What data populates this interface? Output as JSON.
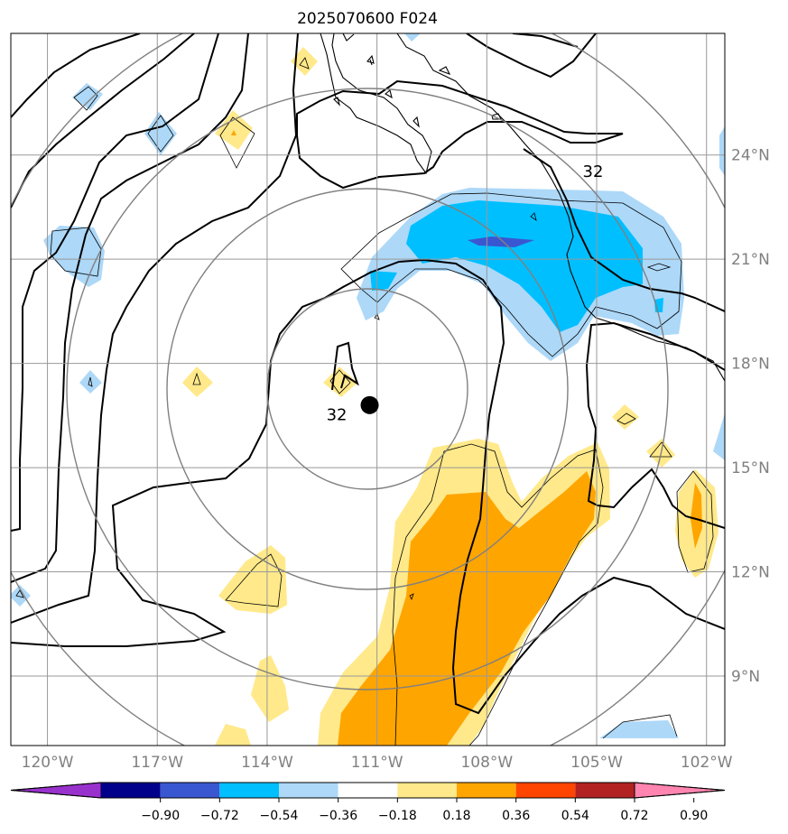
{
  "chart_data": {
    "type": "heatmap",
    "title": "2025070600 F024",
    "map": {
      "lon_range": [
        -121,
        -101.5
      ],
      "lat_range": [
        7,
        27.5
      ],
      "x_ticks": [
        {
          "value": -120,
          "label": "120°W"
        },
        {
          "value": -117,
          "label": "117°W"
        },
        {
          "value": -114,
          "label": "114°W"
        },
        {
          "value": -111,
          "label": "111°W"
        },
        {
          "value": -108,
          "label": "108°W"
        },
        {
          "value": -105,
          "label": "105°W"
        },
        {
          "value": -102,
          "label": "102°W"
        }
      ],
      "y_ticks": [
        {
          "value": 24,
          "label": "24°N"
        },
        {
          "value": 21,
          "label": "21°N"
        },
        {
          "value": 18,
          "label": "18°N"
        },
        {
          "value": 15,
          "label": "15°N"
        },
        {
          "value": 12,
          "label": "12°N"
        },
        {
          "value": 9,
          "label": "9°N"
        }
      ],
      "grid": true,
      "center_marker": {
        "lon": -111.2,
        "lat": 16.8
      },
      "range_rings": 4
    },
    "contour_labels": [
      {
        "text": "32",
        "lon": -105.1,
        "lat": 23.5
      },
      {
        "text": "32",
        "lon": -112.1,
        "lat": 16.5
      }
    ],
    "colorbar": {
      "ticks": [
        "−0.90",
        "−0.72",
        "−0.54",
        "−0.36",
        "−0.18",
        "0.18",
        "0.36",
        "0.54",
        "0.72",
        "0.90"
      ],
      "colors": [
        "#9932cc",
        "#00008b",
        "#3a57d2",
        "#00bfff",
        "#add8f8",
        "#ffffff",
        "#ffe98a",
        "#ffa500",
        "#ff4500",
        "#b22222",
        "#ff85b0"
      ],
      "extend": "both"
    },
    "shaded_regions": [
      {
        "level": "-0.36 to -0.18",
        "area": "Mexico coast / Gulf of California mouth",
        "lon": [
          -111.5,
          -102.2
        ],
        "lat": [
          18,
          22.3
        ]
      },
      {
        "level": "-0.54 to -0.36",
        "area": "south of Baja / Jalisco coast",
        "lon": [
          -110.5,
          -103.5
        ],
        "lat": [
          18.5,
          22
        ]
      },
      {
        "level": "0.18 to 0.36",
        "area": "south-central band",
        "lon": [
          -112.5,
          -104
        ],
        "lat": [
          7.5,
          15.5
        ]
      },
      {
        "level": "0.36 to 0.54",
        "area": "south-central band",
        "lon": [
          -111.5,
          -104.5
        ],
        "lat": [
          7.5,
          14
        ]
      }
    ]
  }
}
